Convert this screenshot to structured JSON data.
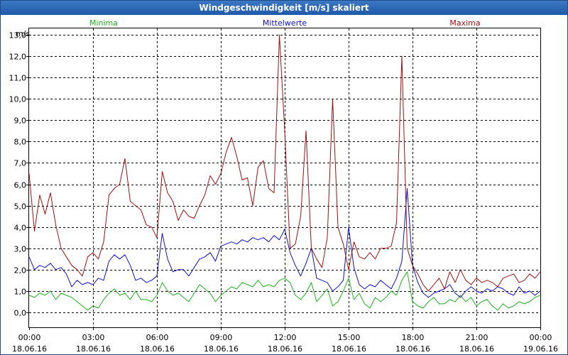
{
  "window": {
    "title": "Windgeschwindigkeit [m/s] skaliert"
  },
  "colors": {
    "minima": "#1fb21f",
    "mittelwerte": "#1010c8",
    "maxima": "#a01010",
    "grid": "#000000"
  },
  "chart_data": {
    "type": "line",
    "title": "Windgeschwindigkeit [m/s] skaliert",
    "ylabel": "m/s",
    "ylim": [
      -0.7,
      13.3
    ],
    "xlim": [
      0,
      24
    ],
    "y_ticks": [
      "0,0",
      "1,0",
      "2,0",
      "3,0",
      "4,0",
      "5,0",
      "6,0",
      "7,0",
      "8,0",
      "9,0",
      "10,0",
      "11,0",
      "12,0",
      "13,0"
    ],
    "x_ticks": [
      {
        "time": "00:00",
        "date": "18.06.16"
      },
      {
        "time": "03:00",
        "date": "18.06.16"
      },
      {
        "time": "06:00",
        "date": "18.06.16"
      },
      {
        "time": "09:00",
        "date": "18.06.16"
      },
      {
        "time": "12:00",
        "date": "18.06.16"
      },
      {
        "time": "15:00",
        "date": "18.06.16"
      },
      {
        "time": "18:00",
        "date": "18.06.16"
      },
      {
        "time": "21:00",
        "date": "18.06.16"
      },
      {
        "time": "00:00",
        "date": "19.06.16"
      }
    ],
    "x_hours": [
      0,
      0.25,
      0.5,
      0.75,
      1,
      1.25,
      1.5,
      1.75,
      2,
      2.25,
      2.5,
      2.75,
      3,
      3.25,
      3.5,
      3.75,
      4,
      4.25,
      4.5,
      4.75,
      5,
      5.25,
      5.5,
      5.75,
      6,
      6.25,
      6.5,
      6.75,
      7,
      7.25,
      7.5,
      7.75,
      8,
      8.25,
      8.5,
      8.75,
      9,
      9.25,
      9.5,
      9.75,
      10,
      10.25,
      10.5,
      10.75,
      11,
      11.25,
      11.5,
      11.75,
      12,
      12.25,
      12.5,
      12.75,
      13,
      13.25,
      13.5,
      13.75,
      14,
      14.25,
      14.5,
      14.75,
      15,
      15.25,
      15.5,
      15.75,
      16,
      16.25,
      16.5,
      16.75,
      17,
      17.25,
      17.5,
      17.75,
      18,
      18.25,
      18.5,
      18.75,
      19,
      19.25,
      19.5,
      19.75,
      20,
      20.25,
      20.5,
      20.75,
      21,
      21.25,
      21.5,
      21.75,
      22,
      22.25,
      22.5,
      22.75,
      23,
      23.25,
      23.5,
      23.75,
      24
    ],
    "series": [
      {
        "name": "Minima",
        "values": [
          0.8,
          0.7,
          0.9,
          0.8,
          1.0,
          0.6,
          0.9,
          0.8,
          0.7,
          0.5,
          0.3,
          0.1,
          0.3,
          0.2,
          0.6,
          0.9,
          1.1,
          0.8,
          0.9,
          0.6,
          1.0,
          0.6,
          0.6,
          0.5,
          0.8,
          1.4,
          1.0,
          0.8,
          0.9,
          0.7,
          0.5,
          0.9,
          1.3,
          1.1,
          0.9,
          0.5,
          0.8,
          1.0,
          1.2,
          1.1,
          1.4,
          1.3,
          1.2,
          1.5,
          1.2,
          1.3,
          1.2,
          1.5,
          1.6,
          1.4,
          0.8,
          0.6,
          0.9,
          1.4,
          0.5,
          0.8,
          1.1,
          0.3,
          0.5,
          1.0,
          1.6,
          0.6,
          0.9,
          0.4,
          0.2,
          0.7,
          0.5,
          0.7,
          1.0,
          0.8,
          1.5,
          1.9,
          0.5,
          0.3,
          0.2,
          0.5,
          0.7,
          0.4,
          0.4,
          0.6,
          0.5,
          0.8,
          0.5,
          0.7,
          0.3,
          0.5,
          0.6,
          0.3,
          0.1,
          0.4,
          0.2,
          0.3,
          0.5,
          0.4,
          0.5,
          0.7,
          0.8
        ]
      },
      {
        "name": "Mittelwerte",
        "values": [
          2.6,
          2.0,
          2.2,
          2.1,
          2.3,
          2.0,
          2.1,
          1.8,
          1.2,
          1.5,
          1.3,
          1.4,
          1.3,
          1.6,
          1.5,
          2.4,
          2.7,
          2.5,
          2.7,
          2.2,
          1.5,
          1.6,
          1.4,
          1.5,
          1.7,
          3.7,
          2.5,
          1.9,
          2.0,
          2.0,
          1.7,
          2.1,
          2.5,
          2.6,
          2.8,
          2.4,
          3.1,
          3.2,
          3.3,
          3.2,
          3.4,
          3.3,
          3.5,
          3.4,
          3.5,
          3.3,
          3.6,
          3.4,
          3.9,
          2.8,
          2.2,
          1.7,
          2.3,
          3.0,
          1.6,
          1.5,
          1.4,
          1.0,
          1.2,
          1.5,
          4.0,
          2.1,
          1.3,
          1.1,
          1.3,
          1.2,
          1.5,
          1.3,
          1.1,
          1.6,
          2.4,
          5.8,
          2.2,
          1.4,
          0.9,
          0.7,
          0.9,
          1.0,
          1.1,
          1.3,
          0.9,
          0.7,
          1.0,
          1.2,
          1.0,
          0.9,
          1.1,
          1.0,
          1.2,
          1.1,
          0.9,
          0.8,
          1.2,
          0.9,
          1.0,
          0.8,
          1.0
        ]
      },
      {
        "name": "Maxima",
        "values": [
          6.5,
          3.8,
          5.5,
          4.6,
          5.6,
          4.1,
          3.0,
          2.6,
          2.2,
          2.0,
          1.7,
          2.6,
          2.8,
          2.5,
          3.3,
          5.5,
          5.8,
          6.0,
          7.2,
          5.2,
          5.0,
          4.8,
          4.1,
          4.0,
          3.5,
          6.6,
          5.6,
          5.2,
          4.3,
          4.8,
          4.5,
          4.4,
          5.0,
          5.5,
          6.4,
          6.0,
          6.5,
          7.5,
          8.2,
          7.3,
          6.2,
          6.3,
          5.0,
          6.8,
          7.1,
          5.8,
          5.6,
          13.0,
          8.5,
          3.0,
          3.2,
          4.5,
          8.5,
          3.0,
          2.5,
          2.1,
          3.5,
          10.0,
          4.0,
          3.2,
          2.0,
          3.3,
          2.6,
          2.5,
          2.8,
          2.5,
          3.0,
          3.0,
          3.1,
          4.2,
          12.0,
          3.0,
          2.2,
          1.8,
          1.3,
          1.0,
          1.3,
          1.6,
          1.1,
          1.9,
          1.4,
          2.0,
          1.5,
          1.3,
          1.6,
          1.4,
          1.5,
          1.4,
          1.2,
          1.6,
          1.7,
          1.8,
          1.4,
          1.5,
          1.8,
          1.6,
          1.9
        ]
      }
    ]
  }
}
